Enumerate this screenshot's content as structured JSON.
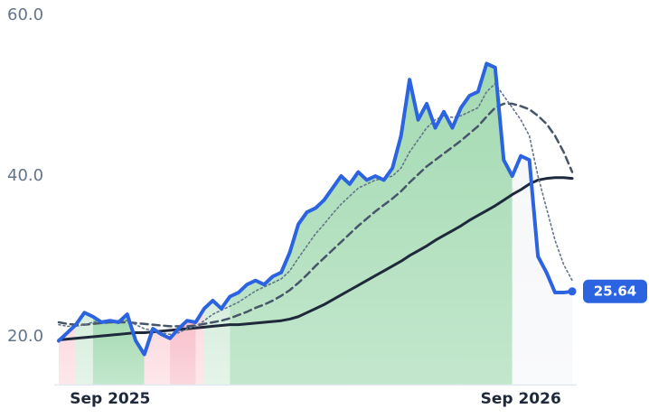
{
  "chart_data": {
    "type": "line",
    "categories": [
      null,
      null,
      null,
      null,
      null,
      null,
      "Sep 2025",
      null,
      null,
      null,
      null,
      null,
      null,
      null,
      null,
      null,
      null,
      null,
      null,
      null,
      null,
      null,
      null,
      null,
      null,
      null,
      null,
      null,
      null,
      null,
      null,
      null,
      null,
      null,
      null,
      null,
      null,
      null,
      null,
      null,
      null,
      null,
      null,
      null,
      null,
      null,
      null,
      null,
      null,
      null,
      null,
      null,
      null,
      null,
      "Sep 2026",
      null,
      null,
      null,
      null,
      null,
      null
    ],
    "ylim": [
      14,
      60
    ],
    "yticks": [
      {
        "value": 20,
        "label": "20.0"
      },
      {
        "value": 40,
        "label": "40.0"
      },
      {
        "value": 60,
        "label": "60.0"
      }
    ],
    "regions": [
      {
        "from": 0,
        "to": 2,
        "color": "#fcdbe1"
      },
      {
        "from": 2,
        "to": 4,
        "color": "#d6eedd"
      },
      {
        "from": 4,
        "to": 10,
        "color": "#a3dab2"
      },
      {
        "from": 10,
        "to": 13,
        "color": "#fcdbe1"
      },
      {
        "from": 13,
        "to": 16,
        "color": "#f8c1cc"
      },
      {
        "from": 16,
        "to": 17,
        "color": "#fcdbe1"
      },
      {
        "from": 17,
        "to": 20,
        "color": "#d6eedd"
      },
      {
        "from": 20,
        "to": 53,
        "color": "#a3dab2"
      },
      {
        "from": 53,
        "to": 60,
        "color": "#f6f7f9"
      }
    ],
    "series": [
      {
        "color": "#2b63e0",
        "style": "solid",
        "width": 4,
        "values": [
          19.5,
          20.5,
          21.5,
          23.0,
          22.5,
          21.8,
          22.0,
          21.8,
          22.8,
          19.5,
          17.8,
          21.0,
          20.3,
          19.8,
          21.0,
          22.0,
          21.8,
          23.5,
          24.5,
          23.5,
          25.0,
          25.5,
          26.5,
          27.0,
          26.5,
          27.5,
          28.0,
          30.5,
          34.0,
          35.5,
          36.0,
          37.0,
          38.5,
          40.0,
          39.0,
          40.5,
          39.5,
          40.0,
          39.5,
          41.0,
          45.0,
          52.0,
          47.0,
          49.0,
          46.0,
          48.0,
          46.0,
          48.5,
          50.0,
          50.5,
          54.0,
          53.5,
          42.0,
          40.0,
          42.5,
          42.0,
          30.0,
          28.0,
          25.5,
          25.5,
          25.64
        ]
      },
      {
        "color": "#64748b",
        "style": "dotted",
        "width": 1.6,
        "values": [
          21.5,
          21.3,
          21.3,
          21.5,
          21.8,
          22.0,
          22.0,
          22.0,
          22.0,
          21.5,
          21.0,
          20.8,
          20.5,
          20.3,
          20.5,
          21.0,
          21.3,
          22.0,
          22.8,
          23.3,
          23.8,
          24.3,
          25.0,
          25.7,
          26.2,
          26.7,
          27.2,
          28.2,
          29.8,
          31.3,
          32.8,
          34.0,
          35.3,
          36.5,
          37.5,
          38.5,
          39.0,
          39.5,
          39.7,
          40.0,
          41.0,
          43.0,
          44.5,
          46.0,
          47.0,
          47.5,
          47.3,
          47.5,
          48.0,
          48.5,
          50.5,
          51.5,
          50.0,
          48.5,
          47.0,
          45.0,
          40.0,
          36.0,
          32.0,
          29.0,
          27.0
        ]
      },
      {
        "color": "#475569",
        "style": "dashed",
        "width": 2.5,
        "values": [
          21.8,
          21.6,
          21.5,
          21.5,
          21.6,
          21.7,
          21.8,
          21.8,
          21.8,
          21.7,
          21.6,
          21.5,
          21.4,
          21.3,
          21.3,
          21.3,
          21.4,
          21.6,
          21.8,
          22.0,
          22.3,
          22.7,
          23.1,
          23.6,
          24.0,
          24.5,
          25.1,
          25.8,
          26.7,
          27.7,
          28.8,
          29.8,
          30.8,
          31.8,
          32.8,
          33.8,
          34.7,
          35.6,
          36.4,
          37.2,
          38.1,
          39.2,
          40.2,
          41.2,
          42.0,
          42.8,
          43.6,
          44.4,
          45.3,
          46.2,
          47.4,
          48.5,
          49.0,
          49.0,
          48.7,
          48.3,
          47.5,
          46.5,
          45.0,
          43.0,
          40.5
        ]
      },
      {
        "color": "#1e293b",
        "style": "solid",
        "width": 3,
        "values": [
          19.6,
          19.7,
          19.8,
          19.9,
          20.0,
          20.1,
          20.2,
          20.3,
          20.4,
          20.5,
          20.5,
          20.6,
          20.7,
          20.8,
          20.9,
          21.0,
          21.1,
          21.2,
          21.3,
          21.4,
          21.5,
          21.5,
          21.6,
          21.7,
          21.8,
          21.9,
          22.0,
          22.2,
          22.5,
          23.0,
          23.5,
          24.0,
          24.6,
          25.2,
          25.8,
          26.4,
          27.0,
          27.6,
          28.2,
          28.8,
          29.4,
          30.1,
          30.7,
          31.3,
          32.0,
          32.6,
          33.2,
          33.8,
          34.5,
          35.1,
          35.7,
          36.3,
          37.0,
          37.7,
          38.3,
          39.0,
          39.5,
          39.7,
          39.8,
          39.8,
          39.7
        ]
      }
    ]
  }
}
